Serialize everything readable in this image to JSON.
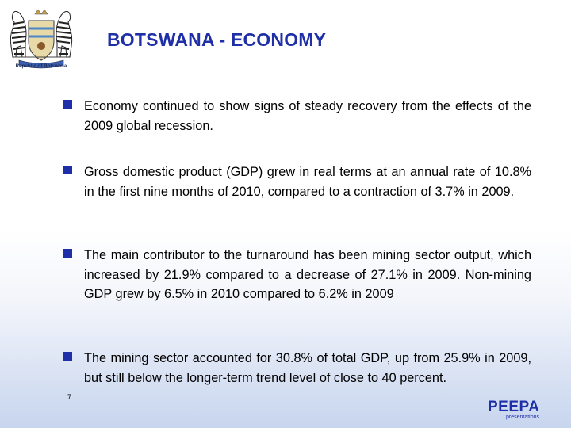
{
  "slide": {
    "title": "BOTSWANA - ECONOMY",
    "logo_caption": "Republic of Botswana",
    "bullets": [
      "Economy continued to show signs of steady recovery from the effects of the 2009 global recession.",
      "Gross domestic product (GDP) grew in real terms at an annual rate of 10.8% in the first nine months of 2010, compared to a contraction of 3.7% in 2009.",
      "The main contributor to the turnaround has been mining sector output, which increased by 21.9% compared to a decrease of 27.1% in 2009.  Non-mining GDP grew by 6.5% in 2010 compared to 6.2% in 2009",
      "The mining sector accounted for 30.8% of total GDP, up from 25.9% in 2009, but still below the longer-term trend level of close to 40 percent."
    ],
    "page_number": "7",
    "brand": {
      "name": "PEEPA",
      "tagline": "presentations"
    }
  },
  "colors": {
    "accent": "#1f2fa8",
    "text": "#000000",
    "background_bottom": "#c7d5ee"
  },
  "icons": {
    "logo": "botswana-coat-of-arms-icon",
    "bullet": "square-bullet-icon"
  }
}
